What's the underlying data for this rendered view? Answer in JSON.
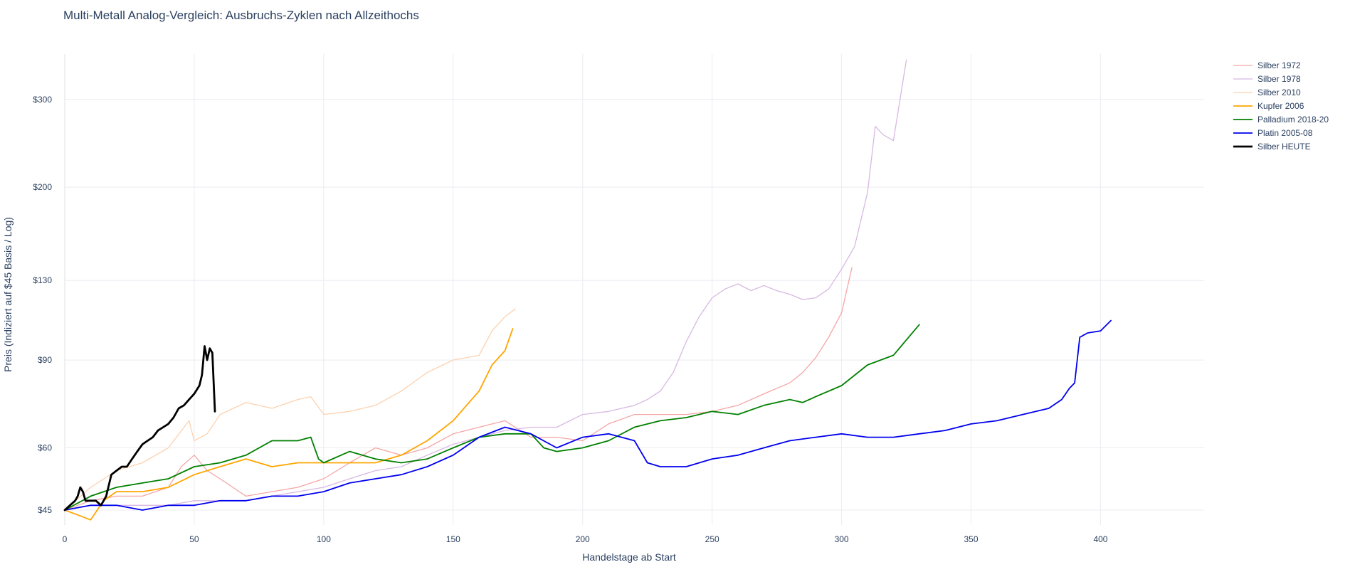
{
  "chart_data": {
    "type": "line",
    "title": "Multi-Metall Analog-Vergleich: Ausbruchs-Zyklen nach Allzeithochs",
    "xlabel": "Handelstage ab Start",
    "ylabel": "Preis (Indiziert auf $45 Basis / Log)",
    "y_scale": "log",
    "xlim": [
      0,
      440
    ],
    "ylim": [
      42,
      370
    ],
    "x_ticks": [
      0,
      50,
      100,
      150,
      200,
      250,
      300,
      350,
      400
    ],
    "y_ticks": [
      {
        "value": 45,
        "label": "$45"
      },
      {
        "value": 60,
        "label": "$60"
      },
      {
        "value": 90,
        "label": "$90"
      },
      {
        "value": 130,
        "label": "$130"
      },
      {
        "value": 200,
        "label": "$200"
      },
      {
        "value": 300,
        "label": "$300"
      }
    ],
    "grid": true,
    "legend_position": "top-right",
    "series": [
      {
        "name": "Silber 1972",
        "color": "#f4a6a6",
        "width": 1.3,
        "points": [
          [
            0,
            45
          ],
          [
            10,
            47
          ],
          [
            20,
            48
          ],
          [
            30,
            48
          ],
          [
            40,
            50
          ],
          [
            45,
            55
          ],
          [
            50,
            58
          ],
          [
            55,
            54
          ],
          [
            60,
            52
          ],
          [
            70,
            48
          ],
          [
            80,
            49
          ],
          [
            90,
            50
          ],
          [
            100,
            52
          ],
          [
            110,
            56
          ],
          [
            120,
            60
          ],
          [
            130,
            58
          ],
          [
            140,
            60
          ],
          [
            150,
            64
          ],
          [
            160,
            66
          ],
          [
            170,
            68
          ],
          [
            180,
            63
          ],
          [
            190,
            63
          ],
          [
            200,
            62
          ],
          [
            210,
            67
          ],
          [
            220,
            70
          ],
          [
            230,
            70
          ],
          [
            240,
            70
          ],
          [
            250,
            71
          ],
          [
            260,
            73
          ],
          [
            270,
            77
          ],
          [
            280,
            81
          ],
          [
            285,
            85
          ],
          [
            290,
            91
          ],
          [
            295,
            100
          ],
          [
            300,
            112
          ],
          [
            304,
            138
          ]
        ]
      },
      {
        "name": "Silber 1978",
        "color": "#d8b8e2",
        "width": 1.3,
        "points": [
          [
            0,
            45
          ],
          [
            10,
            46
          ],
          [
            20,
            46
          ],
          [
            30,
            46
          ],
          [
            40,
            46
          ],
          [
            50,
            47
          ],
          [
            60,
            47
          ],
          [
            70,
            47
          ],
          [
            80,
            48
          ],
          [
            90,
            49
          ],
          [
            100,
            50
          ],
          [
            110,
            52
          ],
          [
            120,
            54
          ],
          [
            130,
            55
          ],
          [
            140,
            58
          ],
          [
            150,
            61
          ],
          [
            160,
            63
          ],
          [
            170,
            65
          ],
          [
            180,
            66
          ],
          [
            190,
            66
          ],
          [
            200,
            70
          ],
          [
            210,
            71
          ],
          [
            220,
            73
          ],
          [
            225,
            75
          ],
          [
            230,
            78
          ],
          [
            235,
            85
          ],
          [
            240,
            98
          ],
          [
            245,
            110
          ],
          [
            250,
            120
          ],
          [
            255,
            125
          ],
          [
            260,
            128
          ],
          [
            265,
            124
          ],
          [
            270,
            127
          ],
          [
            275,
            124
          ],
          [
            280,
            122
          ],
          [
            285,
            119
          ],
          [
            290,
            120
          ],
          [
            295,
            125
          ],
          [
            300,
            137
          ],
          [
            305,
            152
          ],
          [
            310,
            195
          ],
          [
            313,
            265
          ],
          [
            316,
            255
          ],
          [
            320,
            248
          ],
          [
            325,
            360
          ]
        ]
      },
      {
        "name": "Silber 2010",
        "color": "#fcd2b0",
        "width": 1.3,
        "points": [
          [
            0,
            45
          ],
          [
            10,
            50
          ],
          [
            20,
            54
          ],
          [
            30,
            56
          ],
          [
            40,
            60
          ],
          [
            48,
            68
          ],
          [
            50,
            62
          ],
          [
            55,
            64
          ],
          [
            60,
            70
          ],
          [
            70,
            74
          ],
          [
            80,
            72
          ],
          [
            90,
            75
          ],
          [
            95,
            76
          ],
          [
            100,
            70
          ],
          [
            110,
            71
          ],
          [
            120,
            73
          ],
          [
            130,
            78
          ],
          [
            140,
            85
          ],
          [
            150,
            90
          ],
          [
            160,
            92
          ],
          [
            165,
            103
          ],
          [
            170,
            110
          ],
          [
            174,
            114
          ]
        ]
      },
      {
        "name": "Kupfer 2006",
        "color": "#ffa500",
        "width": 1.8,
        "points": [
          [
            0,
            45
          ],
          [
            5,
            44
          ],
          [
            10,
            43
          ],
          [
            15,
            47
          ],
          [
            20,
            49
          ],
          [
            30,
            49
          ],
          [
            40,
            50
          ],
          [
            50,
            53
          ],
          [
            60,
            55
          ],
          [
            70,
            57
          ],
          [
            80,
            55
          ],
          [
            90,
            56
          ],
          [
            100,
            56
          ],
          [
            110,
            56
          ],
          [
            120,
            56
          ],
          [
            130,
            58
          ],
          [
            140,
            62
          ],
          [
            150,
            68
          ],
          [
            160,
            78
          ],
          [
            165,
            88
          ],
          [
            170,
            94
          ],
          [
            173,
            104
          ]
        ]
      },
      {
        "name": "Palladium 2018-20",
        "color": "#008000",
        "width": 1.8,
        "points": [
          [
            0,
            45
          ],
          [
            10,
            48
          ],
          [
            20,
            50
          ],
          [
            30,
            51
          ],
          [
            40,
            52
          ],
          [
            50,
            55
          ],
          [
            60,
            56
          ],
          [
            70,
            58
          ],
          [
            80,
            62
          ],
          [
            90,
            62
          ],
          [
            95,
            63
          ],
          [
            98,
            57
          ],
          [
            100,
            56
          ],
          [
            110,
            59
          ],
          [
            120,
            57
          ],
          [
            130,
            56
          ],
          [
            140,
            57
          ],
          [
            150,
            60
          ],
          [
            160,
            63
          ],
          [
            170,
            64
          ],
          [
            180,
            64
          ],
          [
            185,
            60
          ],
          [
            190,
            59
          ],
          [
            200,
            60
          ],
          [
            210,
            62
          ],
          [
            220,
            66
          ],
          [
            230,
            68
          ],
          [
            240,
            69
          ],
          [
            250,
            71
          ],
          [
            260,
            70
          ],
          [
            270,
            73
          ],
          [
            280,
            75
          ],
          [
            285,
            74
          ],
          [
            290,
            76
          ],
          [
            300,
            80
          ],
          [
            310,
            88
          ],
          [
            320,
            92
          ],
          [
            330,
            106
          ]
        ]
      },
      {
        "name": "Platin 2005-08",
        "color": "#0000ee",
        "width": 1.8,
        "points": [
          [
            0,
            45
          ],
          [
            10,
            46
          ],
          [
            20,
            46
          ],
          [
            30,
            45
          ],
          [
            40,
            46
          ],
          [
            50,
            46
          ],
          [
            60,
            47
          ],
          [
            70,
            47
          ],
          [
            80,
            48
          ],
          [
            90,
            48
          ],
          [
            100,
            49
          ],
          [
            110,
            51
          ],
          [
            120,
            52
          ],
          [
            130,
            53
          ],
          [
            140,
            55
          ],
          [
            150,
            58
          ],
          [
            160,
            63
          ],
          [
            170,
            66
          ],
          [
            180,
            64
          ],
          [
            190,
            60
          ],
          [
            200,
            63
          ],
          [
            210,
            64
          ],
          [
            220,
            62
          ],
          [
            225,
            56
          ],
          [
            230,
            55
          ],
          [
            240,
            55
          ],
          [
            250,
            57
          ],
          [
            260,
            58
          ],
          [
            270,
            60
          ],
          [
            280,
            62
          ],
          [
            290,
            63
          ],
          [
            300,
            64
          ],
          [
            310,
            63
          ],
          [
            320,
            63
          ],
          [
            330,
            64
          ],
          [
            340,
            65
          ],
          [
            350,
            67
          ],
          [
            360,
            68
          ],
          [
            370,
            70
          ],
          [
            380,
            72
          ],
          [
            385,
            75
          ],
          [
            388,
            79
          ],
          [
            390,
            81
          ],
          [
            392,
            100
          ],
          [
            395,
            102
          ],
          [
            400,
            103
          ],
          [
            404,
            108
          ]
        ]
      },
      {
        "name": "Silber HEUTE",
        "color": "#000000",
        "width": 2.8,
        "points": [
          [
            0,
            45
          ],
          [
            2,
            46
          ],
          [
            4,
            47
          ],
          [
            5,
            48
          ],
          [
            6,
            50
          ],
          [
            7,
            49
          ],
          [
            8,
            47
          ],
          [
            10,
            47
          ],
          [
            12,
            47
          ],
          [
            14,
            46
          ],
          [
            16,
            48
          ],
          [
            18,
            53
          ],
          [
            20,
            54
          ],
          [
            22,
            55
          ],
          [
            24,
            55
          ],
          [
            26,
            57
          ],
          [
            28,
            59
          ],
          [
            30,
            61
          ],
          [
            32,
            62
          ],
          [
            34,
            63
          ],
          [
            36,
            65
          ],
          [
            38,
            66
          ],
          [
            40,
            67
          ],
          [
            42,
            69
          ],
          [
            44,
            72
          ],
          [
            46,
            73
          ],
          [
            48,
            75
          ],
          [
            50,
            77
          ],
          [
            52,
            80
          ],
          [
            53,
            84
          ],
          [
            54,
            96
          ],
          [
            55,
            90
          ],
          [
            56,
            95
          ],
          [
            57,
            93
          ],
          [
            58,
            71
          ]
        ]
      }
    ]
  }
}
